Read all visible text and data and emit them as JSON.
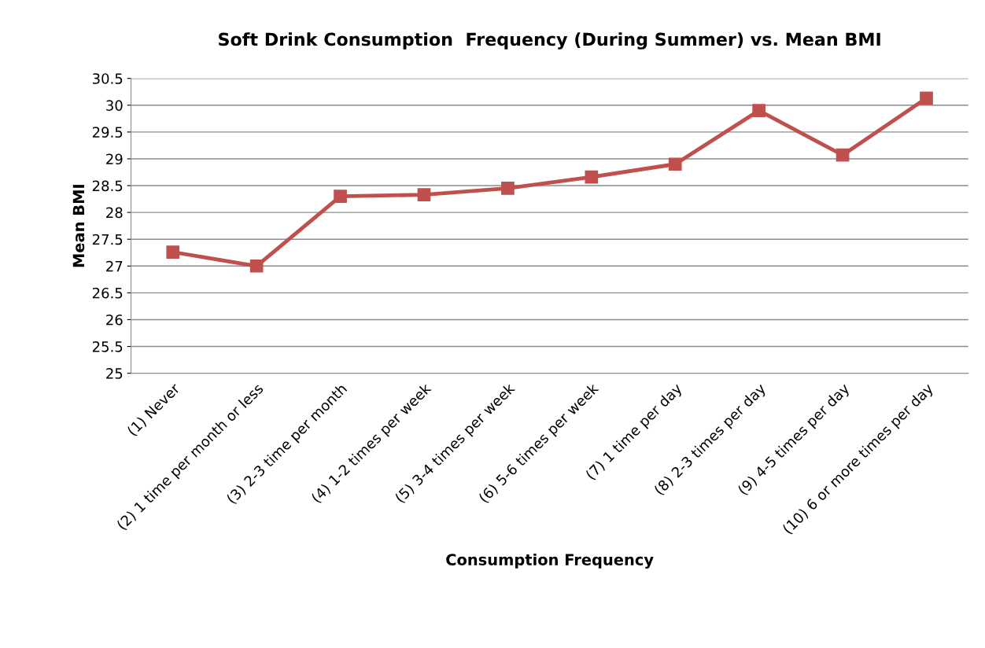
{
  "chart_data": {
    "type": "line",
    "title": "Soft Drink Consumption  Frequency (During Summer) vs. Mean BMI",
    "xlabel": "Consumption Frequency",
    "ylabel": "Mean BMI",
    "categories": [
      "(1) Never",
      "(2) 1 time per month or less",
      "(3) 2-3 time per month",
      "(4) 1-2 times per week",
      "(5) 3-4 times per week",
      "(6) 5-6 times per week",
      "(7) 1 time per day",
      "(8) 2-3 times per day",
      "(9) 4-5 times per day",
      "(10) 6 or more times per day"
    ],
    "series": [
      {
        "color": "#c0504d",
        "values": [
          27.26,
          27.0,
          28.3,
          28.33,
          28.45,
          28.66,
          28.9,
          29.9,
          29.07,
          30.13
        ]
      }
    ],
    "ylim": [
      25,
      30.5
    ],
    "yticks": [
      25,
      25.5,
      26,
      26.5,
      27,
      27.5,
      28,
      28.5,
      29,
      29.5,
      30,
      30.5
    ],
    "grid": "y",
    "marker": "square",
    "line_style": "solid"
  }
}
